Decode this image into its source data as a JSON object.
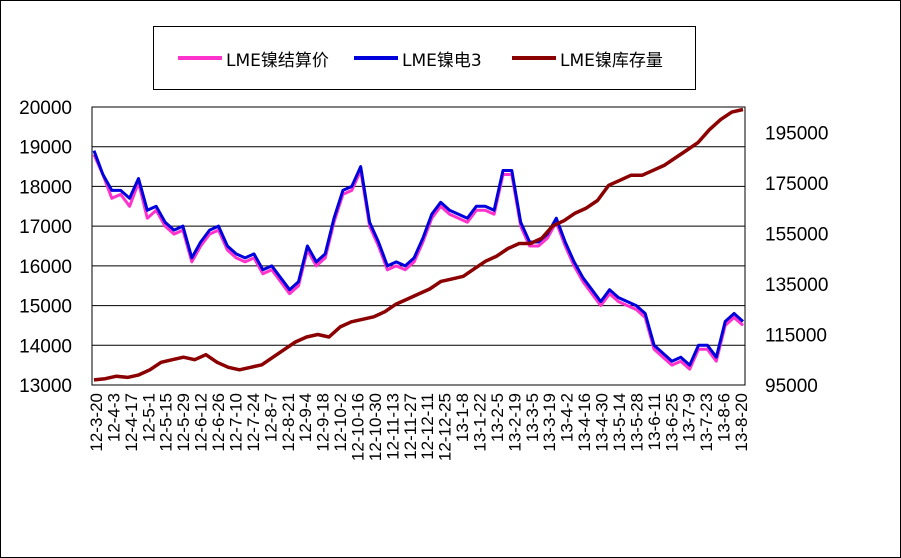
{
  "chart_data": {
    "type": "line",
    "title": "",
    "left_axis": {
      "min": 13000,
      "max": 20000,
      "ticks": [
        "20000",
        "19000",
        "18000",
        "17000",
        "16000",
        "15000",
        "14000",
        "13000"
      ]
    },
    "right_axis": {
      "min": 95000,
      "max": 205000,
      "ticks": [
        "195000",
        "175000",
        "155000",
        "135000",
        "115000",
        "95000"
      ]
    },
    "grid": "horizontal",
    "legend_position": "top-center",
    "x_tick_labels": [
      "12-3-20",
      "12-4-3",
      "12-4-17",
      "12-5-1",
      "12-5-15",
      "12-5-29",
      "12-6-12",
      "12-6-26",
      "12-7-10",
      "12-7-24",
      "12-8-7",
      "12-8-21",
      "12-9-4",
      "12-9-18",
      "12-10-2",
      "12-10-16",
      "12-10-30",
      "12-11-13",
      "12-11-27",
      "12-12-11",
      "12-12-25",
      "13-1-8",
      "13-1-22",
      "13-2-5",
      "13-2-19",
      "13-3-5",
      "13-3-19",
      "13-4-2",
      "13-4-16",
      "13-4-30",
      "13-5-14",
      "13-5-28",
      "13-6-11",
      "13-6-25",
      "13-7-9",
      "13-7-23",
      "13-8-6",
      "13-8-20"
    ],
    "series": [
      {
        "name": "LME镍结算价",
        "axis": "left",
        "color": "#ff33cc",
        "values": [
          18800,
          18300,
          17700,
          17800,
          17500,
          18100,
          17200,
          17400,
          17000,
          16800,
          16900,
          16100,
          16500,
          16800,
          16900,
          16400,
          16200,
          16100,
          16200,
          15800,
          15900,
          15600,
          15300,
          15500,
          16400,
          16000,
          16200,
          17100,
          17800,
          17900,
          18400,
          17000,
          16500,
          15900,
          16000,
          15900,
          16100,
          16600,
          17200,
          17500,
          17300,
          17200,
          17100,
          17400,
          17400,
          17300,
          18300,
          18300,
          17000,
          16500,
          16500,
          16700,
          17100,
          16500,
          16000,
          15600,
          15300,
          15000,
          15300,
          15100,
          15000,
          14900,
          14700,
          13900,
          13700,
          13500,
          13600,
          13400,
          13900,
          13900,
          13600,
          14500,
          14700,
          14500
        ]
      },
      {
        "name": "LME镍电3",
        "axis": "left",
        "color": "#0000dd",
        "values": [
          18900,
          18300,
          17900,
          17900,
          17700,
          18200,
          17400,
          17500,
          17100,
          16900,
          17000,
          16200,
          16600,
          16900,
          17000,
          16500,
          16300,
          16200,
          16300,
          15900,
          16000,
          15700,
          15400,
          15600,
          16500,
          16100,
          16300,
          17200,
          17900,
          18000,
          18500,
          17100,
          16600,
          16000,
          16100,
          16000,
          16200,
          16700,
          17300,
          17600,
          17400,
          17300,
          17200,
          17500,
          17500,
          17400,
          18400,
          18400,
          17100,
          16600,
          16600,
          16800,
          17200,
          16600,
          16100,
          15700,
          15400,
          15100,
          15400,
          15200,
          15100,
          15000,
          14800,
          14000,
          13800,
          13600,
          13700,
          13500,
          14000,
          14000,
          13700,
          14600,
          14800,
          14600
        ]
      },
      {
        "name": "LME镍库存量",
        "axis": "right",
        "color": "#8b0000",
        "values": [
          97000,
          97500,
          98500,
          98000,
          99000,
          101000,
          104000,
          105000,
          106000,
          105000,
          107000,
          104000,
          102000,
          101000,
          102000,
          103000,
          106000,
          109000,
          112000,
          114000,
          115000,
          114000,
          118000,
          120000,
          121000,
          122000,
          124000,
          127000,
          129000,
          131000,
          133000,
          136000,
          137000,
          138000,
          141000,
          144000,
          146000,
          149000,
          151000,
          151000,
          153000,
          158000,
          160000,
          163000,
          165000,
          168000,
          174000,
          176000,
          178000,
          178000,
          180000,
          182000,
          185000,
          188000,
          191000,
          196000,
          200000,
          203000,
          204000
        ]
      }
    ]
  }
}
